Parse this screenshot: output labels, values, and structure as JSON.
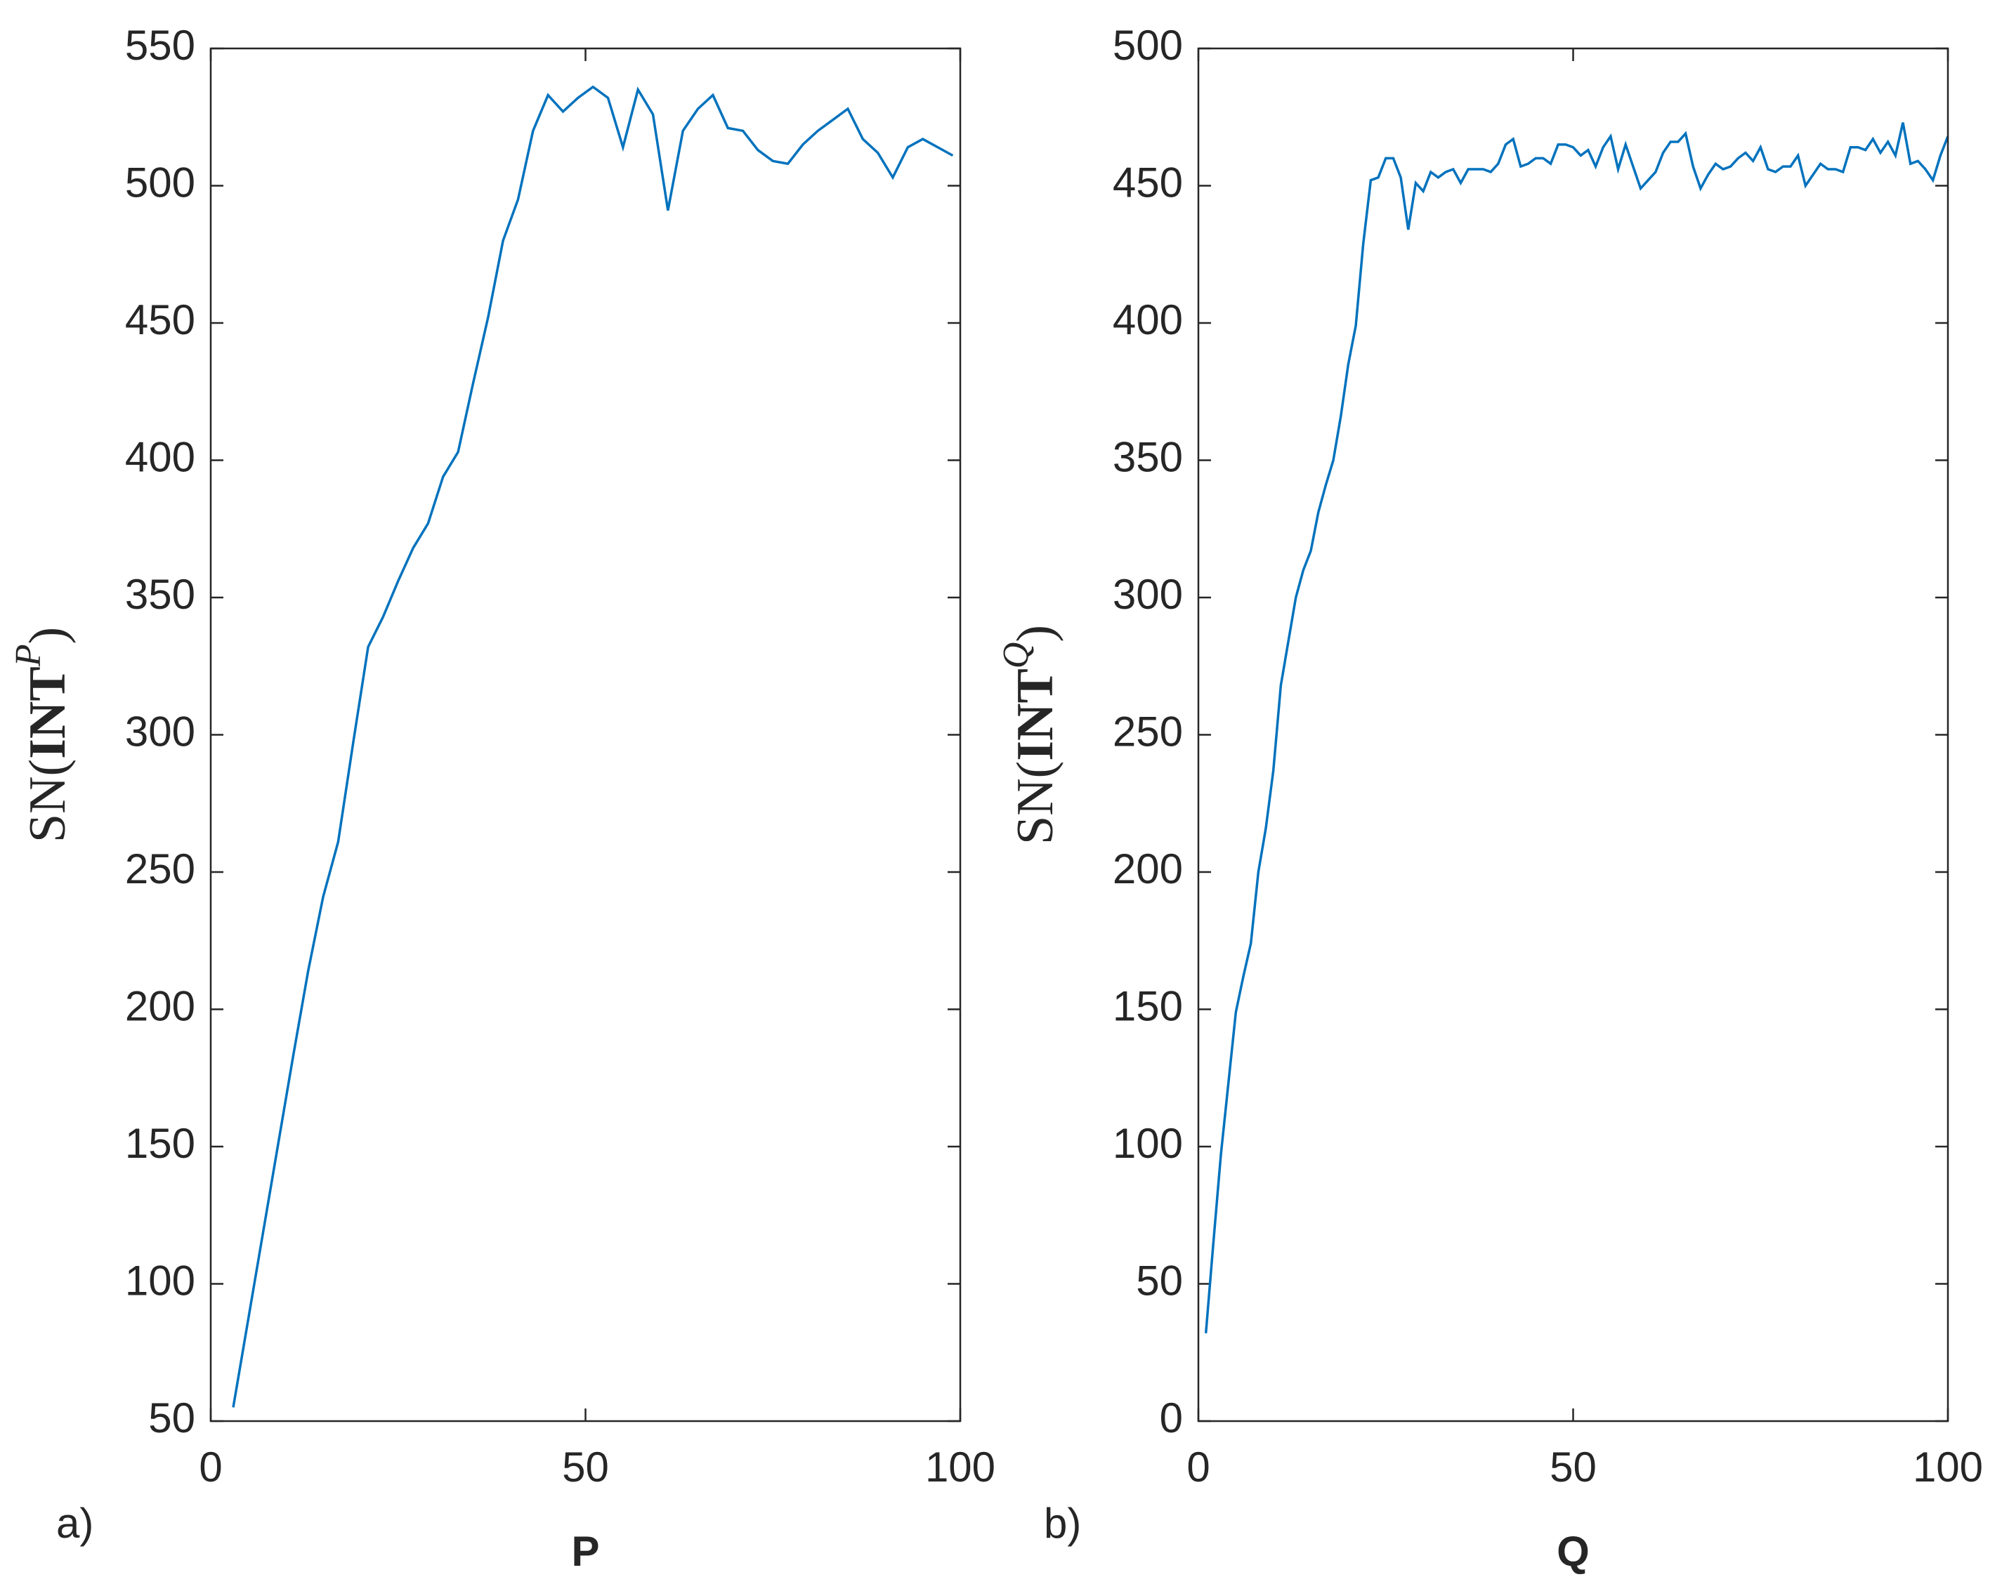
{
  "chart_data": [
    {
      "type": "line",
      "panel": "a)",
      "xlabel": "P",
      "ylabel": [
        "SN(",
        "INT",
        "P",
        ")"
      ],
      "xlim": [
        0,
        100
      ],
      "ylim": [
        50,
        550
      ],
      "xticks": [
        0,
        50,
        100
      ],
      "yticks": [
        50,
        100,
        150,
        200,
        250,
        300,
        350,
        400,
        450,
        500,
        550
      ],
      "grid": false,
      "x": [
        3,
        5,
        7,
        9,
        11,
        13,
        15,
        17,
        19,
        21,
        23,
        25,
        27,
        29,
        31,
        33,
        35,
        37,
        39,
        41,
        43,
        45,
        47,
        49,
        51,
        53,
        55,
        57,
        59,
        61,
        63,
        65,
        67,
        69,
        71,
        73,
        75,
        77,
        79,
        81,
        83,
        85,
        87,
        89,
        91,
        93,
        95,
        97,
        99
      ],
      "series": [
        {
          "name": "SN(INT^P)",
          "color": "#0072bd",
          "values": [
            55,
            87,
            119,
            151,
            183,
            214,
            241,
            261,
            297,
            332,
            343,
            356,
            368,
            377,
            394,
            403,
            428,
            452,
            480,
            495,
            520,
            533,
            527,
            532,
            536,
            532,
            514,
            535,
            526,
            491,
            520,
            528,
            533,
            521,
            520,
            513,
            509,
            508,
            515,
            520,
            524,
            528,
            517,
            512,
            503,
            514,
            517,
            514,
            511
          ]
        }
      ]
    },
    {
      "type": "line",
      "panel": "b)",
      "xlabel": "Q",
      "ylabel": [
        "SN(",
        "INT",
        "Q",
        ")"
      ],
      "xlim": [
        0,
        100
      ],
      "ylim": [
        0,
        500
      ],
      "xticks": [
        0,
        50,
        100
      ],
      "yticks": [
        0,
        50,
        100,
        150,
        200,
        250,
        300,
        350,
        400,
        450,
        500
      ],
      "grid": false,
      "x": [
        1,
        2,
        3,
        4,
        5,
        6,
        7,
        8,
        9,
        10,
        11,
        12,
        13,
        14,
        15,
        16,
        17,
        18,
        19,
        20,
        21,
        22,
        23,
        24,
        25,
        26,
        27,
        28,
        29,
        30,
        31,
        32,
        33,
        34,
        35,
        36,
        37,
        38,
        39,
        40,
        41,
        42,
        43,
        44,
        45,
        46,
        47,
        48,
        49,
        50,
        51,
        52,
        53,
        54,
        55,
        56,
        57,
        58,
        59,
        60,
        61,
        62,
        63,
        64,
        65,
        66,
        67,
        68,
        69,
        70,
        71,
        72,
        73,
        74,
        75,
        76,
        77,
        78,
        79,
        80,
        81,
        82,
        83,
        84,
        85,
        86,
        87,
        88,
        89,
        90,
        91,
        92,
        93,
        94,
        95,
        96,
        97,
        98,
        99,
        100
      ],
      "series": [
        {
          "name": "SN(INT^Q)",
          "color": "#0072bd",
          "values": [
            32,
            65,
            97,
            123,
            149,
            162,
            174,
            200,
            216,
            237,
            268,
            284,
            300,
            310,
            317,
            331,
            341,
            350,
            366,
            385,
            399,
            429,
            452,
            453,
            460,
            460,
            453,
            434,
            451,
            448,
            455,
            453,
            455,
            456,
            451,
            456,
            456,
            456,
            455,
            458,
            465,
            467,
            457,
            458,
            460,
            460,
            458,
            465,
            465,
            464,
            461,
            463,
            457,
            464,
            468,
            456,
            465,
            457,
            449,
            452,
            455,
            462,
            466,
            466,
            469,
            457,
            449,
            454,
            458,
            456,
            457,
            460,
            462,
            459,
            464,
            456,
            455,
            457,
            457,
            461,
            450,
            454,
            458,
            456,
            456,
            455,
            464,
            464,
            463,
            467,
            462,
            466,
            461,
            473,
            458,
            459,
            456,
            452,
            461,
            468
          ]
        }
      ]
    }
  ]
}
